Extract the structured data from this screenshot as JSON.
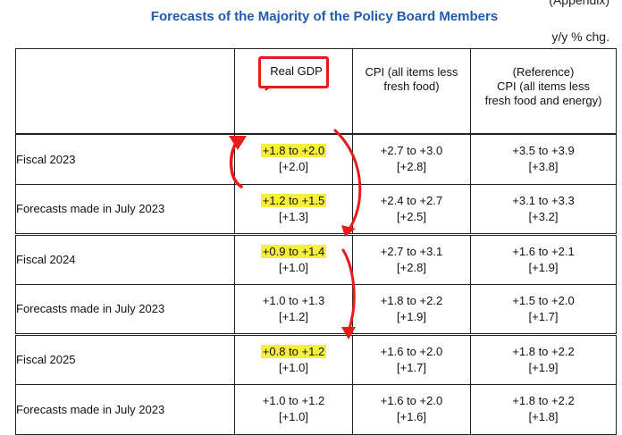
{
  "page": {
    "appendix_label": "(Appendix)",
    "title": "Forecasts of the Majority of the Policy Board Members",
    "unit": "y/y % chg."
  },
  "columns": {
    "real_gdp": "Real GDP",
    "cpi_line1": "CPI (all items less",
    "cpi_line2": "fresh food)",
    "ref_line1": "(Reference)",
    "ref_line2": "CPI (all items less",
    "ref_line3": "fresh food and energy)"
  },
  "rows": [
    {
      "label": "Fiscal 2023",
      "gdp_range": "+1.8 to +2.0",
      "gdp_median": "[+2.0]",
      "cpi_range": "+2.7 to +3.0",
      "cpi_median": "[+2.8]",
      "core_range": "+3.5 to +3.9",
      "core_median": "[+3.8]"
    },
    {
      "label": "Forecasts made in July 2023",
      "gdp_range": "+1.2 to +1.5",
      "gdp_median": "[+1.3]",
      "cpi_range": "+2.4 to +2.7",
      "cpi_median": "[+2.5]",
      "core_range": "+3.1 to +3.3",
      "core_median": "[+3.2]"
    },
    {
      "label": "Fiscal 2024",
      "gdp_range": "+0.9 to +1.4",
      "gdp_median": "[+1.0]",
      "cpi_range": "+2.7 to +3.1",
      "cpi_median": "[+2.8]",
      "core_range": "+1.6 to +2.1",
      "core_median": "[+1.9]"
    },
    {
      "label": "Forecasts made in July 2023",
      "gdp_range": "+1.0 to +1.3",
      "gdp_median": "[+1.2]",
      "cpi_range": "+1.8 to +2.2",
      "cpi_median": "[+1.9]",
      "core_range": "+1.5 to +2.0",
      "core_median": "[+1.7]"
    },
    {
      "label": "Fiscal 2025",
      "gdp_range": "+0.8 to +1.2",
      "gdp_median": "[+1.0]",
      "cpi_range": "+1.6 to +2.0",
      "cpi_median": "[+1.7]",
      "core_range": "+1.8 to +2.2",
      "core_median": "[+1.9]"
    },
    {
      "label": "Forecasts made in July 2023",
      "gdp_range": "+1.0 to +1.2",
      "gdp_median": "[+1.0]",
      "cpi_range": "+1.6 to +2.0",
      "cpi_median": "[+1.6]",
      "core_range": "+1.8 to +2.2",
      "core_median": "[+1.8]"
    }
  ],
  "colors": {
    "title_blue": "#1f5bb0",
    "highlight_yellow": "#f6f03a",
    "annotation_red": "#e81a1a"
  }
}
